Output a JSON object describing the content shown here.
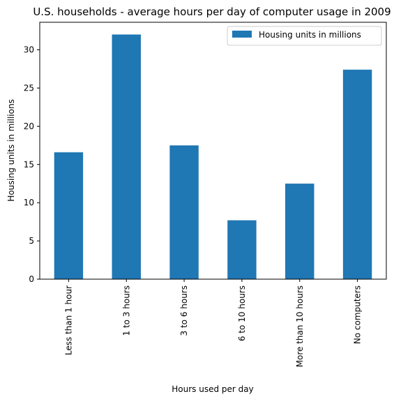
{
  "colors": {
    "bar": "#1f77b4",
    "axis": "#000000",
    "legend_border": "#cccccc"
  },
  "chart_data": {
    "type": "bar",
    "title": "U.S. households - average hours per day of computer usage in 2009",
    "xlabel": "Hours used per day",
    "ylabel": "Housing units in millions",
    "categories": [
      "Less than 1 hour",
      "1 to 3 hours",
      "3 to 6 hours",
      "6 to 10 hours",
      "More than 10 hours",
      "No computers"
    ],
    "series": [
      {
        "name": "Housing units in millions",
        "values": [
          16.6,
          32.0,
          17.5,
          7.7,
          12.5,
          27.4
        ]
      }
    ],
    "ylim": [
      0,
      33.6
    ],
    "yticks": [
      0,
      5,
      10,
      15,
      20,
      25,
      30
    ],
    "grid": false,
    "legend_position": "top-right"
  }
}
